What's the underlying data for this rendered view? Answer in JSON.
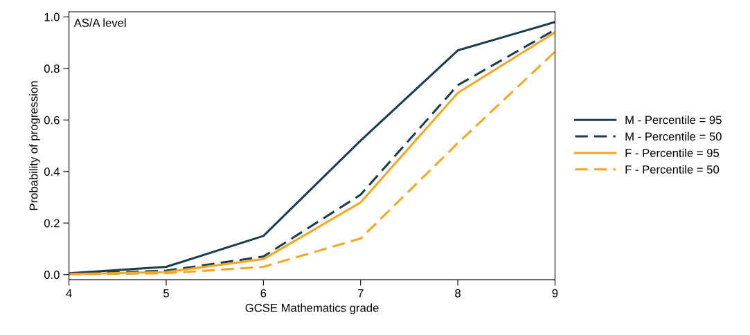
{
  "chart_data": {
    "type": "line",
    "xlabel": "GCSE Mathematics grade",
    "ylabel": "Probability of progression",
    "annotations": [
      "AS/A level"
    ],
    "x": [
      4,
      5,
      6,
      7,
      8,
      9
    ],
    "series": [
      {
        "name": "M - Percentile = 95",
        "color": "#1c3d4a",
        "line_style": "solid",
        "values": [
          0.005,
          0.03,
          0.15,
          0.52,
          0.87,
          0.98
        ]
      },
      {
        "name": "M - Percentile = 50",
        "color": "#1c3d4a",
        "line_style": "dashed",
        "values": [
          0.003,
          0.015,
          0.07,
          0.31,
          0.735,
          0.95
        ]
      },
      {
        "name": "F - Percentile = 95",
        "color": "#f5a623",
        "line_style": "solid",
        "values": [
          0.002,
          0.01,
          0.06,
          0.28,
          0.705,
          0.94
        ]
      },
      {
        "name": "F - Percentile = 50",
        "color": "#f5a623",
        "line_style": "dashed",
        "values": [
          0.001,
          0.005,
          0.03,
          0.14,
          0.51,
          0.865
        ]
      }
    ],
    "xlim": [
      4,
      9
    ],
    "ylim": [
      -0.02,
      1.02
    ],
    "xticks": [
      4,
      5,
      6,
      7,
      8,
      9
    ],
    "yticks": [
      {
        "value": 0,
        "label": "0.0"
      },
      {
        "value": 0.2,
        "label": "0.2"
      },
      {
        "value": 0.4,
        "label": "0.4"
      },
      {
        "value": 0.6,
        "label": "0.6"
      },
      {
        "value": 0.8,
        "label": "0.8"
      },
      {
        "value": 1,
        "label": "1.0"
      }
    ],
    "grid": false,
    "legend": "right",
    "marker": "none"
  }
}
